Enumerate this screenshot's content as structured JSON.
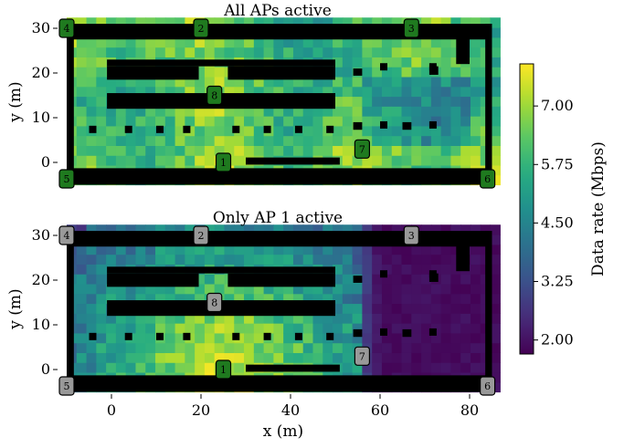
{
  "chart_data": {
    "type": "heatmap",
    "colormap": "viridis",
    "colorbar": {
      "label": "Data rate (Mbps)",
      "range": [
        1.7,
        7.9
      ],
      "ticks": [
        "2.00",
        "3.25",
        "4.50",
        "5.75",
        "7.00"
      ],
      "tick_values": [
        2.0,
        3.25,
        4.5,
        5.75,
        7.0
      ]
    },
    "xlabel": "x (m)",
    "ylabel": "y (m)",
    "xlim": [
      -10,
      85
    ],
    "ylim": [
      -5,
      31
    ],
    "xticks": [
      "0",
      "20",
      "40",
      "60",
      "80"
    ],
    "xtick_values": [
      0,
      20,
      40,
      60,
      80
    ],
    "yticks": [
      "0",
      "10",
      "20",
      "30"
    ],
    "ytick_values": [
      0,
      10,
      20,
      30
    ],
    "access_points": [
      {
        "label": "1",
        "x": 25,
        "y": 0
      },
      {
        "label": "2",
        "x": 20,
        "y": 30
      },
      {
        "label": "3",
        "x": 67,
        "y": 30
      },
      {
        "label": "4",
        "x": -10,
        "y": 30
      },
      {
        "label": "5",
        "x": -10,
        "y": -4
      },
      {
        "label": "6",
        "x": 84,
        "y": -4
      },
      {
        "label": "7",
        "x": 56,
        "y": 3
      },
      {
        "label": "8",
        "x": 23,
        "y": 15
      }
    ],
    "panels": [
      {
        "title": "All APs active",
        "active_aps": [
          "1",
          "2",
          "3",
          "4",
          "5",
          "6",
          "7",
          "8"
        ],
        "active_color": "#1f7a1f",
        "inactive_color": "#999999"
      },
      {
        "title": "Only AP 1 active",
        "active_aps": [
          "1"
        ],
        "active_color": "#1f7a1f",
        "inactive_color": "#999999"
      }
    ]
  }
}
